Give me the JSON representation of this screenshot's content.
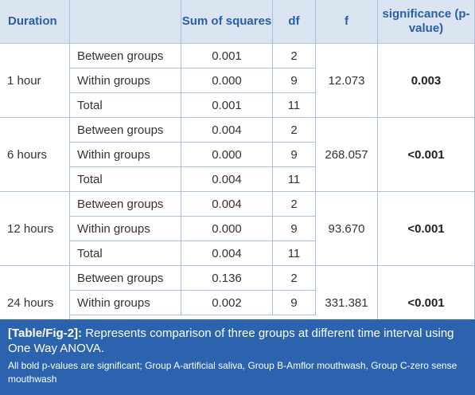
{
  "table": {
    "header": [
      "Duration",
      "Sum of squares",
      "df",
      "f",
      "significance (p-value)"
    ],
    "groups": [
      {
        "duration": "1 hour",
        "rows": [
          [
            "Between groups",
            "0.001",
            "2"
          ],
          [
            "Within groups",
            "0.000",
            "9"
          ],
          [
            "Total",
            "0.001",
            "11"
          ]
        ],
        "f": "12.073",
        "p": "0.003"
      },
      {
        "duration": "6 hours",
        "rows": [
          [
            "Between groups",
            "0.004",
            "2"
          ],
          [
            "Within groups",
            "0.000",
            "9"
          ],
          [
            "Total",
            "0.004",
            "11"
          ]
        ],
        "f": "268.057",
        "p": "<0.001"
      },
      {
        "duration": "12 hours",
        "rows": [
          [
            "Between groups",
            "0.004",
            "2"
          ],
          [
            "Within groups",
            "0.000",
            "9"
          ],
          [
            "Total",
            "0.004",
            "11"
          ]
        ],
        "f": "93.670",
        "p": "<0.001"
      },
      {
        "duration": "24 hours",
        "rows": [
          [
            "Between groups",
            "0.136",
            "2"
          ],
          [
            "Within groups",
            "0.002",
            "9"
          ]
        ],
        "f": "331.381",
        "p": "<0.001"
      }
    ]
  },
  "caption": {
    "label": "[Table/Fig-2]:",
    "text": "Represents comparison of three groups at different time interval using One Way ANOVA.",
    "note": "All bold p-values are significant; Group A-artificial saliva, Group B-Amflor mouthwash, Group C-zero sense mouthwash"
  }
}
